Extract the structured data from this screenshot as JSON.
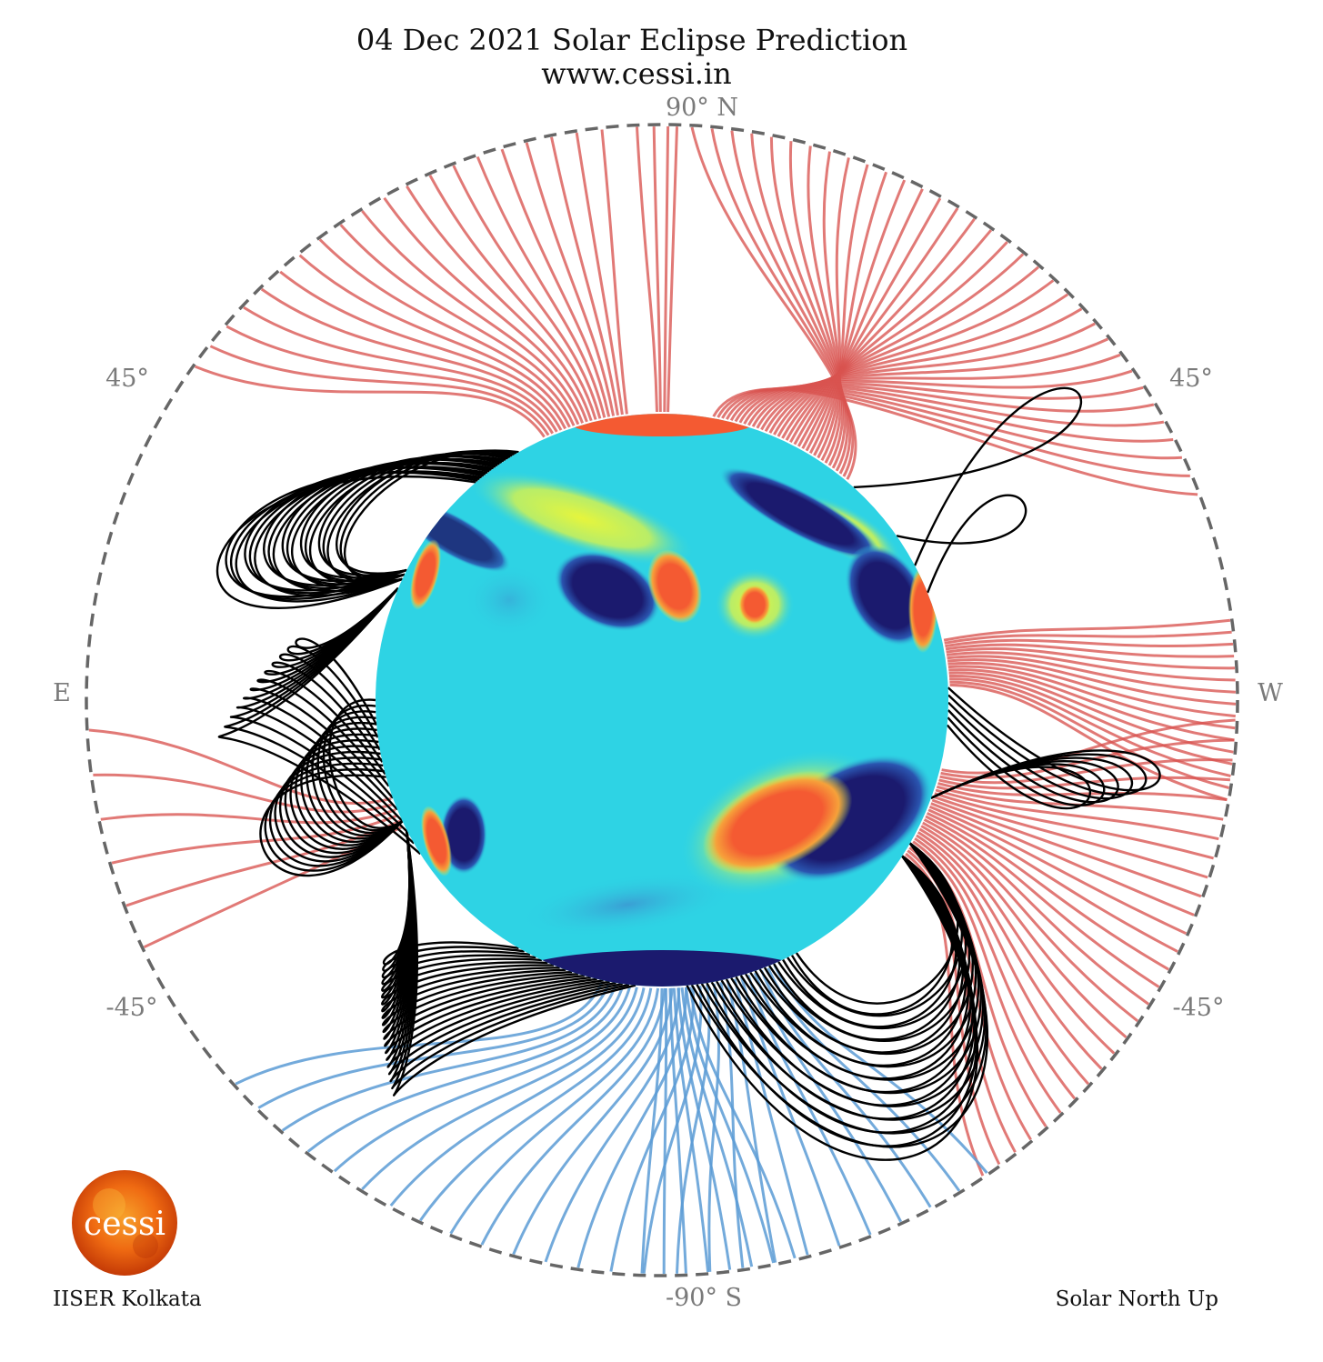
{
  "title_line1": "04 Dec 2021 Solar Eclipse Prediction",
  "title_line2": "www.cessi.in",
  "labels": {
    "north": "90° N",
    "south": "-90° S",
    "east": "E",
    "west": "W",
    "ne": "45°",
    "nw": "45°",
    "se": "-45°",
    "sw": "-45°"
  },
  "logo_text": "cessi",
  "footer_left": "IISER Kolkata",
  "footer_right": "Solar North Up",
  "colors": {
    "open_positive": "#d9534f",
    "open_negative": "#5b9bd5",
    "closed_loops": "#000000",
    "boundary": "#666666",
    "disk_base": "#2ed3e4"
  }
}
